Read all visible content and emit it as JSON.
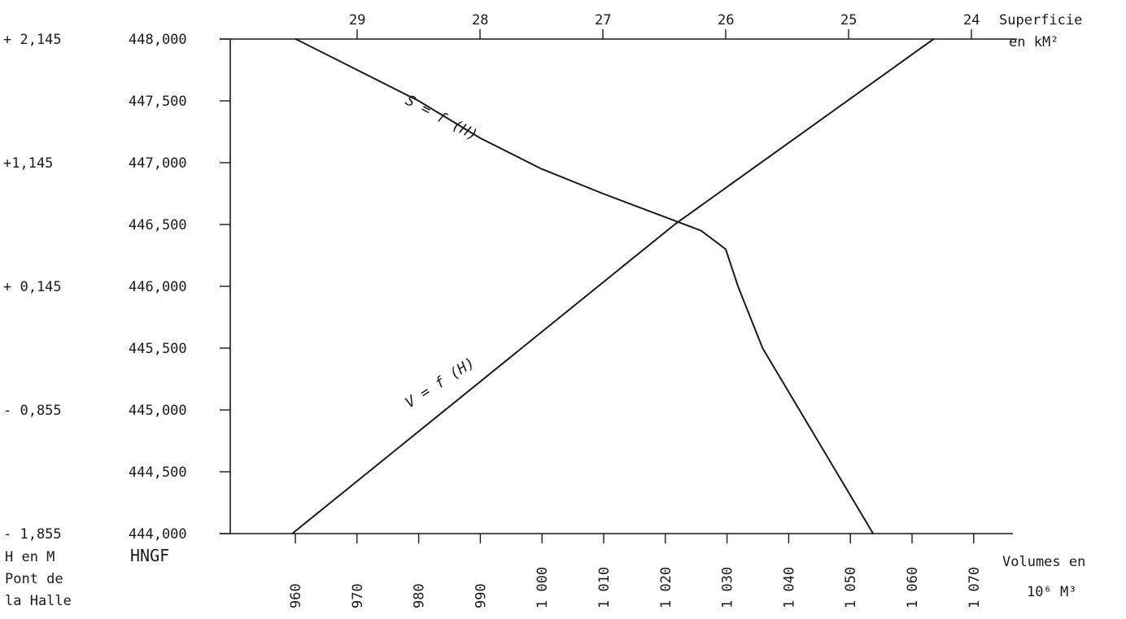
{
  "chart_data": {
    "type": "line",
    "series": [
      {
        "name": "S = f (H)",
        "x_axis": "top",
        "x": [
          29.5,
          29.0,
          28.5,
          28.0,
          27.5,
          27.0,
          26.6,
          26.2,
          26.0,
          25.9,
          25.7,
          25.4,
          25.1,
          24.8
        ],
        "y": [
          448.0,
          447.75,
          447.5,
          447.2,
          446.95,
          446.75,
          446.6,
          446.45,
          446.3,
          446.0,
          445.5,
          445.0,
          444.5,
          444.0
        ]
      },
      {
        "name": "V = f (H)",
        "x_axis": "bottom",
        "x": [
          959.5,
          1021.5,
          1063.5
        ],
        "y": [
          444.0,
          446.5,
          448.0
        ]
      }
    ],
    "y_left_outer": {
      "title": [
        "H en M",
        "Pont de",
        "la Halle"
      ],
      "tick_labels": [
        "+ 2,145",
        "+1,145",
        "+ 0,145",
        "- 0,855",
        "- 1,855"
      ],
      "tick_values": [
        448.0,
        447.0,
        446.0,
        445.0,
        444.0
      ]
    },
    "y_left": {
      "title": "HNGF",
      "tick_labels": [
        "448,000",
        "447,500",
        "447,000",
        "446,500",
        "446,000",
        "445,500",
        "445,000",
        "444,500",
        "444,000"
      ],
      "tick_values": [
        448.0,
        447.5,
        447.0,
        446.5,
        446.0,
        445.5,
        445.0,
        444.5,
        444.0
      ],
      "ylim": [
        444.0,
        448.0
      ]
    },
    "x_top": {
      "title": [
        "Superficie",
        "en kM²"
      ],
      "tick_labels": [
        "29",
        "28",
        "27",
        "26",
        "25",
        "24"
      ],
      "tick_values": [
        29,
        28,
        27,
        26,
        25,
        24
      ],
      "xlim": [
        30,
        24
      ]
    },
    "x_bottom": {
      "title": [
        "Volumes en",
        "10⁶ M³"
      ],
      "tick_labels": [
        "960",
        "970",
        "980",
        "990",
        "1 000",
        "1 010",
        "1 020",
        "1 030",
        "1 040",
        "1 050",
        "1 060",
        "1 070"
      ],
      "tick_values": [
        960,
        970,
        980,
        990,
        1000,
        1010,
        1020,
        1030,
        1040,
        1050,
        1060,
        1070
      ],
      "xlim": [
        948,
        1074
      ]
    },
    "grid": false
  }
}
